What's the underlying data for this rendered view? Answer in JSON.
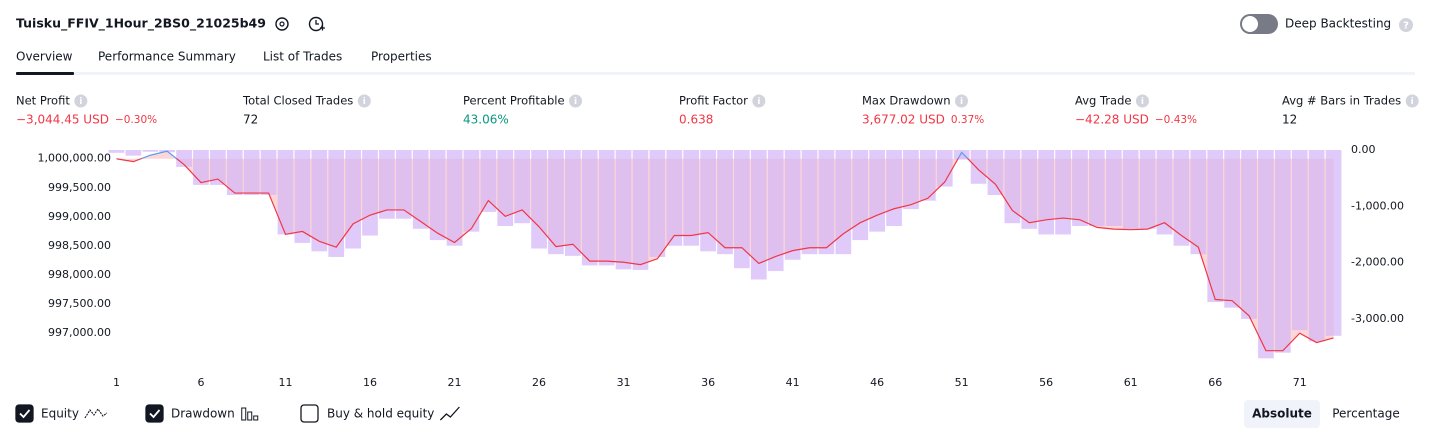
{
  "header": {
    "title": "Tuisku_FFIV_1Hour_2BS0_21025b49",
    "deep_backtesting": "Deep Backtesting"
  },
  "tabs": [
    "Overview",
    "Performance Summary",
    "List of Trades",
    "Properties"
  ],
  "metrics": [
    {
      "label": "Net Profit",
      "value": "−3,044.45 USD",
      "change": "−0.30%"
    },
    {
      "label": "Total Closed Trades",
      "value": "72"
    },
    {
      "label": "Percent Profitable",
      "value": "43.06%"
    },
    {
      "label": "Profit Factor",
      "value": "0.638"
    },
    {
      "label": "Max Drawdown",
      "value": "3,677.02 USD",
      "change": "0.37%"
    },
    {
      "label": "Avg Trade",
      "value": "−42.28 USD",
      "change": "−0.43%"
    },
    {
      "label": "Avg # Bars in Trades",
      "value": "12"
    }
  ],
  "chart_data": {
    "type": "equity_drawdown",
    "x": [
      1,
      2,
      3,
      4,
      5,
      6,
      7,
      8,
      9,
      10,
      11,
      12,
      13,
      14,
      15,
      16,
      17,
      18,
      19,
      20,
      21,
      22,
      23,
      24,
      25,
      26,
      27,
      28,
      29,
      30,
      31,
      32,
      33,
      34,
      35,
      36,
      37,
      38,
      39,
      40,
      41,
      42,
      43,
      44,
      45,
      46,
      47,
      48,
      49,
      50,
      51,
      52,
      53,
      54,
      55,
      56,
      57,
      58,
      59,
      60,
      61,
      62,
      63,
      64,
      65,
      66,
      67,
      68,
      69,
      70,
      71,
      72,
      73
    ],
    "xlim": [
      0.5,
      73.5
    ],
    "xticks": [
      1,
      6,
      11,
      16,
      21,
      26,
      31,
      36,
      41,
      46,
      51,
      56,
      61,
      66,
      71
    ],
    "ylim": [
      996540,
      1000150
    ],
    "yticks": [
      {
        "value": 997000,
        "label": "997,000.00"
      },
      {
        "value": 997500,
        "label": "997,500.00"
      },
      {
        "value": 998000,
        "label": "998,000.00"
      },
      {
        "value": 998500,
        "label": "998,500.00"
      },
      {
        "value": 999000,
        "label": "999,000.00"
      },
      {
        "value": 999500,
        "label": "999,500.00"
      },
      {
        "value": 1000000,
        "label": "1,000,000.00"
      }
    ],
    "y2lim": [
      -3730,
      0
    ],
    "y2ticks": [
      {
        "value": -3000,
        "label": "-3,000.00"
      },
      {
        "value": -2000,
        "label": "-2,000.00"
      },
      {
        "value": -1000,
        "label": "-1,000.00"
      },
      {
        "value": 0,
        "label": "0.00"
      }
    ],
    "series": [
      {
        "name": "Equity",
        "color": "#f23645",
        "color_above": "#5b9cf6",
        "values": [
          1000000,
          999950,
          1000060,
          1000130,
          999900,
          999590,
          999650,
          999410,
          999410,
          999410,
          998700,
          998750,
          998580,
          998480,
          998880,
          999030,
          999120,
          999120,
          998920,
          998720,
          998560,
          998800,
          999280,
          999010,
          999120,
          998830,
          998490,
          998530,
          998240,
          998240,
          998220,
          998180,
          998280,
          998680,
          998680,
          998730,
          998470,
          998470,
          998200,
          998320,
          998420,
          998470,
          998470,
          998710,
          998900,
          999030,
          999140,
          999210,
          999320,
          999600,
          1000110,
          999810,
          999560,
          999110,
          998900,
          998950,
          998980,
          998950,
          998820,
          998790,
          998780,
          998790,
          998900,
          998680,
          998480,
          997580,
          997560,
          997300,
          996700,
          996700,
          997000,
          996840,
          996920
        ]
      },
      {
        "name": "Drawdown",
        "color": "#d3b5f7",
        "axis": "y2",
        "values": [
          -50,
          -100,
          -30,
          -40,
          -300,
          -620,
          -620,
          -800,
          -800,
          -800,
          -1500,
          -1650,
          -1800,
          -1900,
          -1750,
          -1520,
          -1220,
          -1220,
          -1400,
          -1600,
          -1700,
          -1450,
          -1100,
          -1350,
          -1300,
          -1750,
          -1850,
          -1880,
          -2050,
          -2050,
          -2120,
          -2130,
          -1900,
          -1700,
          -1700,
          -1800,
          -1850,
          -2100,
          -2300,
          -2150,
          -1950,
          -1850,
          -1850,
          -1850,
          -1600,
          -1450,
          -1350,
          -1050,
          -900,
          -650,
          -170,
          -600,
          -800,
          -1300,
          -1400,
          -1500,
          -1500,
          -1350,
          -1350,
          -1350,
          -1400,
          -1400,
          -1500,
          -1700,
          -1850,
          -2700,
          -2800,
          -3000,
          -3700,
          -3600,
          -3200,
          -3400,
          -3300
        ]
      }
    ]
  },
  "controls": {
    "buy_hold": "Buy & hold equity",
    "modes": [
      "Absolute",
      "Percentage"
    ]
  }
}
